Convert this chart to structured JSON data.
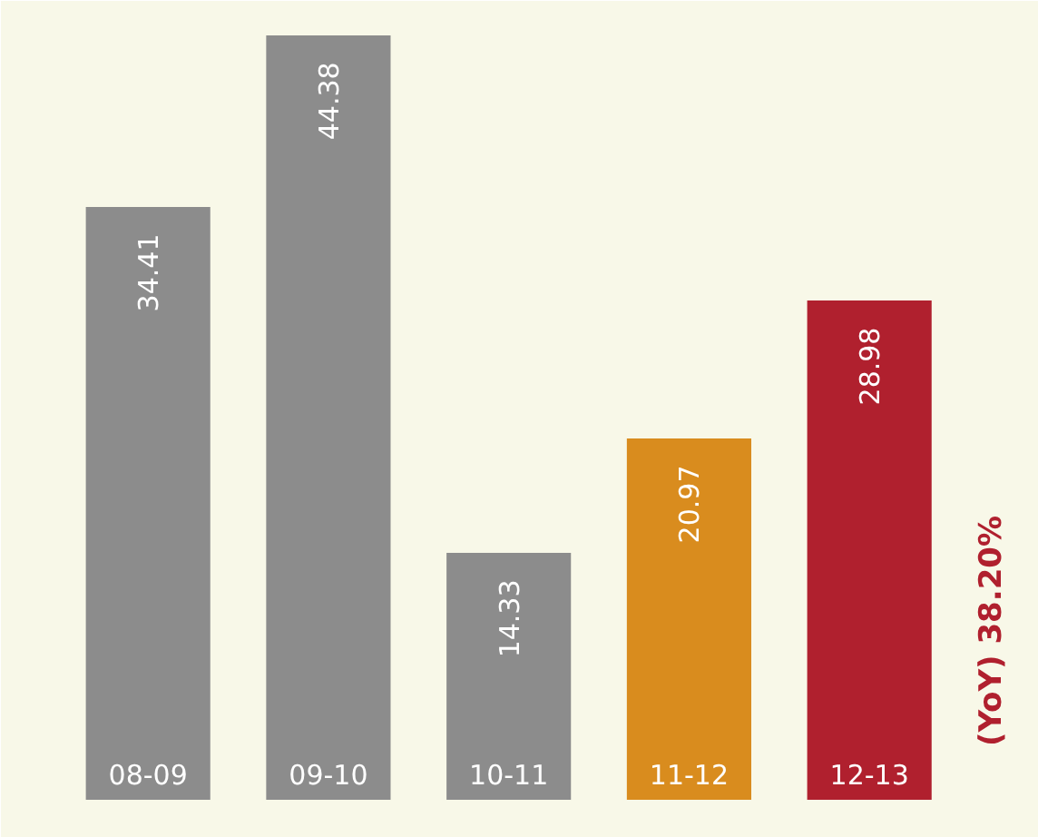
{
  "chart_data": {
    "type": "bar",
    "categories": [
      "08-09",
      "09-10",
      "10-11",
      "11-12",
      "12-13"
    ],
    "values": [
      34.41,
      44.38,
      14.33,
      20.97,
      28.98
    ],
    "colors": [
      "#8c8c8c",
      "#8c8c8c",
      "#8c8c8c",
      "#d98c1e",
      "#b0202e"
    ],
    "data_labels": true,
    "grid": false,
    "annotations": [
      "(YoY) 38.20%"
    ]
  }
}
